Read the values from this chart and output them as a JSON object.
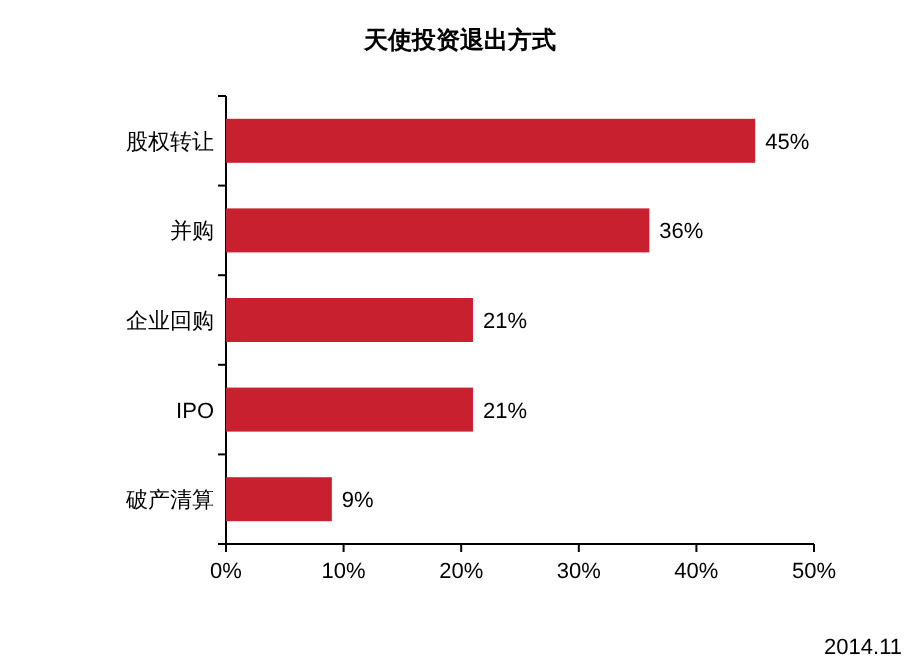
{
  "chart_data": {
    "type": "bar",
    "orientation": "horizontal",
    "title": "天使投资退出方式",
    "categories": [
      "股权转让",
      "并购",
      "企业回购",
      "IPO",
      "破产清算"
    ],
    "values": [
      45,
      36,
      21,
      21,
      9
    ],
    "value_labels": [
      "45%",
      "36%",
      "21%",
      "21%",
      "9%"
    ],
    "color": "#c8202e",
    "xlim": [
      0,
      50
    ],
    "xticks": [
      {
        "value": 0,
        "label": "0%"
      },
      {
        "value": 10,
        "label": "10%"
      },
      {
        "value": 20,
        "label": "20%"
      },
      {
        "value": 30,
        "label": "30%"
      },
      {
        "value": 40,
        "label": "40%"
      },
      {
        "value": 50,
        "label": "50%"
      }
    ],
    "annotations": [
      "2014.11"
    ]
  }
}
